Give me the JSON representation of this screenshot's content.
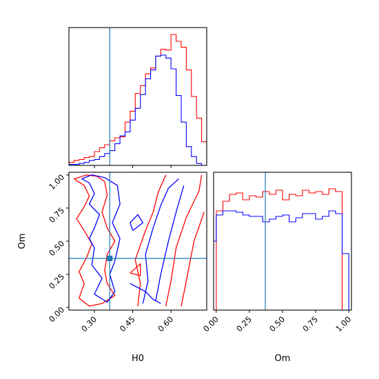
{
  "chart_data": {
    "type": "corner",
    "colors": {
      "red": "#ff0000",
      "blue": "#0000ff",
      "truth": "#1f77b4"
    },
    "parameters": [
      "H0",
      "Om"
    ],
    "truth": {
      "H0": 0.36,
      "Om": 0.37
    },
    "h0_hist": {
      "bins": [
        0.2,
        0.22,
        0.24,
        0.26,
        0.28,
        0.3,
        0.32,
        0.34,
        0.36,
        0.38,
        0.4,
        0.42,
        0.44,
        0.46,
        0.48,
        0.5,
        0.52,
        0.54,
        0.56,
        0.58,
        0.6,
        0.62,
        0.64,
        0.66,
        0.68,
        0.7,
        0.72,
        0.74
      ],
      "red": [
        3,
        5,
        6,
        8,
        9,
        14,
        18,
        21,
        25,
        28,
        29,
        44,
        55,
        73,
        81,
        93,
        99,
        111,
        118,
        117,
        133,
        126,
        120,
        97,
        70,
        48,
        24
      ],
      "blue": [
        1,
        1,
        2,
        3,
        5,
        6,
        9,
        12,
        15,
        22,
        30,
        34,
        46,
        58,
        72,
        88,
        97,
        111,
        112,
        109,
        98,
        71,
        44,
        19,
        9,
        2,
        0
      ],
      "ylim": [
        0,
        140
      ]
    },
    "om_hist": {
      "bins": [
        -0.05,
        -0.0,
        0.05,
        0.1,
        0.15,
        0.2,
        0.25,
        0.3,
        0.35,
        0.4,
        0.45,
        0.5,
        0.55,
        0.6,
        0.65,
        0.7,
        0.75,
        0.8,
        0.85,
        0.9,
        0.95,
        1.0
      ],
      "red": [
        0,
        72,
        79,
        84,
        85,
        80,
        83,
        82,
        86,
        84,
        87,
        80,
        84,
        83,
        87,
        85,
        86,
        84,
        88,
        86,
        0
      ],
      "blue": [
        50,
        69,
        72,
        72,
        71,
        69,
        68,
        68,
        64,
        66,
        68,
        69,
        64,
        67,
        70,
        70,
        66,
        68,
        72,
        70,
        41
      ],
      "ylim": [
        0,
        100
      ]
    },
    "contours": {
      "red": [
        [
          [
            0.22,
            0.97
          ],
          [
            0.26,
            0.92
          ],
          [
            0.28,
            0.84
          ],
          [
            0.26,
            0.76
          ],
          [
            0.23,
            0.67
          ],
          [
            0.26,
            0.58
          ],
          [
            0.29,
            0.48
          ],
          [
            0.27,
            0.38
          ],
          [
            0.24,
            0.27
          ],
          [
            0.26,
            0.18
          ],
          [
            0.24,
            0.07
          ],
          [
            0.28,
            0.01
          ],
          [
            0.33,
            0.03
          ],
          [
            0.38,
            0.09
          ],
          [
            0.35,
            0.18
          ],
          [
            0.34,
            0.28
          ],
          [
            0.35,
            0.4
          ],
          [
            0.38,
            0.5
          ],
          [
            0.35,
            0.6
          ],
          [
            0.33,
            0.72
          ],
          [
            0.35,
            0.85
          ],
          [
            0.34,
            0.95
          ],
          [
            0.31,
            0.99
          ],
          [
            0.27,
            1.0
          ],
          [
            0.22,
            0.97
          ]
        ],
        [
          [
            0.47,
            0.01
          ],
          [
            0.48,
            0.18
          ],
          [
            0.46,
            0.36
          ],
          [
            0.5,
            0.58
          ],
          [
            0.53,
            0.72
          ],
          [
            0.55,
            0.87
          ],
          [
            0.58,
            1.0
          ]
        ],
        [
          [
            0.58,
            0.01
          ],
          [
            0.6,
            0.2
          ],
          [
            0.62,
            0.45
          ],
          [
            0.66,
            0.68
          ],
          [
            0.71,
            0.88
          ],
          [
            0.72,
            1.0
          ]
        ],
        [
          [
            0.64,
            0.01
          ],
          [
            0.66,
            0.2
          ],
          [
            0.69,
            0.5
          ],
          [
            0.73,
            0.72
          ]
        ],
        [
          [
            0.44,
            0.26
          ],
          [
            0.48,
            0.24
          ],
          [
            0.48,
            0.33
          ],
          [
            0.44,
            0.26
          ]
        ]
      ],
      "blue": [
        [
          [
            0.25,
            0.97
          ],
          [
            0.28,
            0.94
          ],
          [
            0.3,
            0.86
          ],
          [
            0.28,
            0.78
          ],
          [
            0.32,
            0.7
          ],
          [
            0.3,
            0.6
          ],
          [
            0.28,
            0.52
          ],
          [
            0.3,
            0.45
          ],
          [
            0.29,
            0.32
          ],
          [
            0.33,
            0.22
          ],
          [
            0.3,
            0.1
          ],
          [
            0.35,
            0.04
          ],
          [
            0.38,
            0.12
          ],
          [
            0.36,
            0.25
          ],
          [
            0.38,
            0.35
          ],
          [
            0.4,
            0.52
          ],
          [
            0.37,
            0.64
          ],
          [
            0.4,
            0.78
          ],
          [
            0.39,
            0.92
          ],
          [
            0.34,
            0.98
          ],
          [
            0.29,
            1.0
          ],
          [
            0.25,
            0.97
          ]
        ],
        [
          [
            0.49,
            0.03
          ],
          [
            0.51,
            0.2
          ],
          [
            0.5,
            0.4
          ],
          [
            0.53,
            0.6
          ],
          [
            0.56,
            0.77
          ],
          [
            0.59,
            0.9
          ],
          [
            0.63,
            0.97
          ]
        ],
        [
          [
            0.54,
            0.05
          ],
          [
            0.56,
            0.25
          ],
          [
            0.59,
            0.5
          ],
          [
            0.62,
            0.72
          ],
          [
            0.65,
            0.92
          ]
        ],
        [
          [
            0.44,
            0.18
          ],
          [
            0.5,
            0.12
          ],
          [
            0.53,
            0.06
          ],
          [
            0.56,
            0.03
          ]
        ],
        [
          [
            0.45,
            0.58
          ],
          [
            0.49,
            0.64
          ],
          [
            0.47,
            0.7
          ],
          [
            0.44,
            0.64
          ],
          [
            0.45,
            0.58
          ]
        ]
      ]
    },
    "h0_axis": {
      "label": "H0",
      "range": [
        0.2,
        0.74
      ],
      "ticks": [
        0.3,
        0.45,
        0.6
      ],
      "tick_labels": [
        "0.30",
        "0.45",
        "0.60"
      ]
    },
    "om_axis": {
      "label": "Om",
      "range": [
        -0.02,
        1.02
      ],
      "ticks": [
        0.0,
        0.25,
        0.5,
        0.75,
        1.0
      ],
      "tick_labels": [
        "0.00",
        "0.25",
        "0.50",
        "0.75",
        "1.00"
      ]
    }
  }
}
